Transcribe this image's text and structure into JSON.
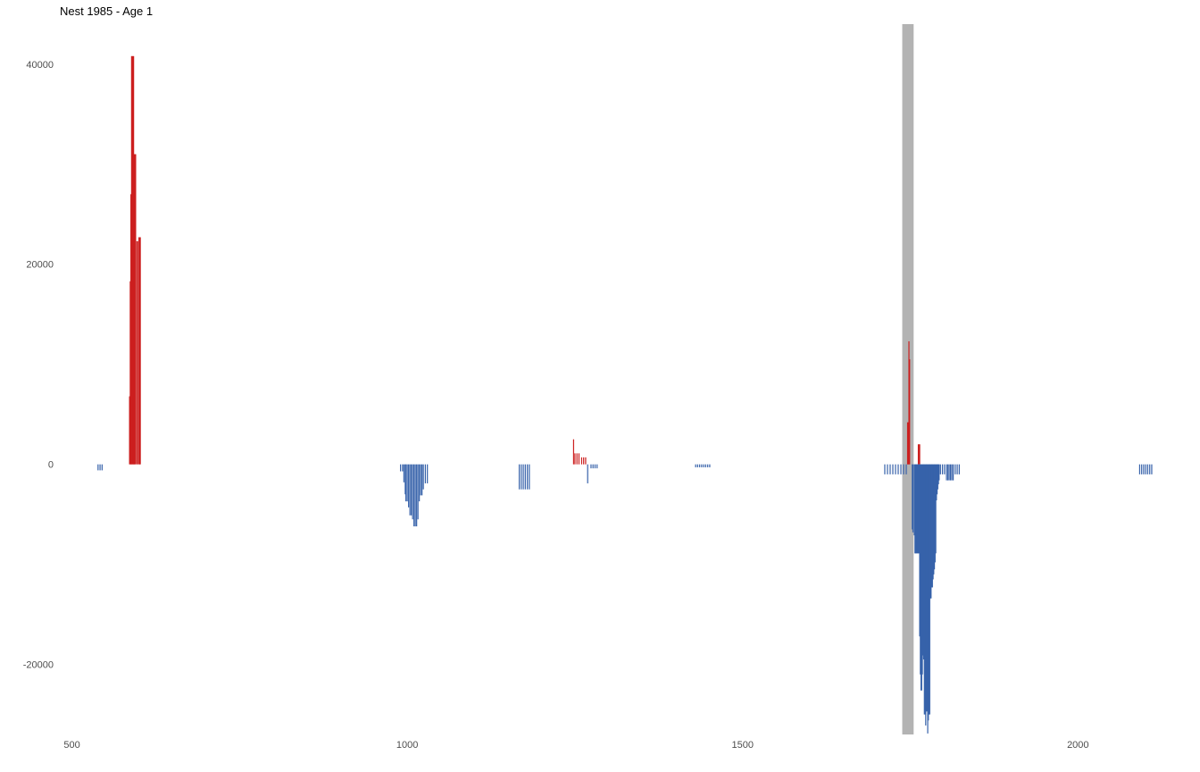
{
  "chart_data": {
    "type": "bar",
    "title": "Nest 1985 - Age 1",
    "xlabel": "",
    "ylabel": "",
    "xlim": [
      482,
      2150
    ],
    "ylim": [
      -27000,
      44000
    ],
    "x_ticks": [
      {
        "value": 500,
        "label": "500"
      },
      {
        "value": 1000,
        "label": "1000"
      },
      {
        "value": 1500,
        "label": "1500"
      },
      {
        "value": 2000,
        "label": "2000"
      }
    ],
    "y_ticks": [
      {
        "value": 40000,
        "label": "40000"
      },
      {
        "value": 20000,
        "label": "20000"
      },
      {
        "value": 0,
        "label": "0"
      },
      {
        "value": -20000,
        "label": "-20000"
      }
    ],
    "grid": false,
    "legend": "none",
    "colors": {
      "positive": "#cc1f1f",
      "negative": "#3762aa",
      "highlight_band": "#b3b3b3"
    },
    "highlight_band": {
      "x_start": 1738,
      "x_end": 1755
    },
    "series": [
      {
        "sign": "positive",
        "points": [
          {
            "x": 586,
            "y": 6800
          },
          {
            "x": 587,
            "y": 18300
          },
          {
            "x": 588,
            "y": 27000
          },
          {
            "x": 589,
            "y": 40800
          },
          {
            "x": 590,
            "y": 40800
          },
          {
            "x": 591,
            "y": 40800
          },
          {
            "x": 592,
            "y": 40800
          },
          {
            "x": 593,
            "y": 31000
          },
          {
            "x": 594,
            "y": 31000
          },
          {
            "x": 595,
            "y": 31000
          },
          {
            "x": 597,
            "y": 22300
          },
          {
            "x": 598,
            "y": 22300
          },
          {
            "x": 600,
            "y": 22700
          },
          {
            "x": 601,
            "y": 22700
          },
          {
            "x": 602,
            "y": 22700
          },
          {
            "x": 1248,
            "y": 2500
          },
          {
            "x": 1250,
            "y": 1100
          },
          {
            "x": 1253,
            "y": 1100
          },
          {
            "x": 1256,
            "y": 1100
          },
          {
            "x": 1260,
            "y": 700
          },
          {
            "x": 1263,
            "y": 700
          },
          {
            "x": 1266,
            "y": 700
          },
          {
            "x": 1746,
            "y": 4200
          },
          {
            "x": 1747,
            "y": 4200
          },
          {
            "x": 1748,
            "y": 12300
          },
          {
            "x": 1749,
            "y": 10500
          },
          {
            "x": 1762,
            "y": 2000
          },
          {
            "x": 1763,
            "y": 2000
          },
          {
            "x": 1764,
            "y": 2000
          }
        ]
      },
      {
        "sign": "negative",
        "points": [
          {
            "x": 539,
            "y": -600
          },
          {
            "x": 542,
            "y": -600
          },
          {
            "x": 545,
            "y": -600
          },
          {
            "x": 990,
            "y": -700
          },
          {
            "x": 993,
            "y": -700
          },
          {
            "x": 995,
            "y": -1800
          },
          {
            "x": 997,
            "y": -3000
          },
          {
            "x": 998,
            "y": -3700
          },
          {
            "x": 1000,
            "y": -3700
          },
          {
            "x": 1002,
            "y": -4300
          },
          {
            "x": 1004,
            "y": -5100
          },
          {
            "x": 1006,
            "y": -5100
          },
          {
            "x": 1008,
            "y": -5500
          },
          {
            "x": 1010,
            "y": -6200
          },
          {
            "x": 1012,
            "y": -6200
          },
          {
            "x": 1014,
            "y": -6200
          },
          {
            "x": 1016,
            "y": -5500
          },
          {
            "x": 1018,
            "y": -3700
          },
          {
            "x": 1020,
            "y": -3100
          },
          {
            "x": 1022,
            "y": -3100
          },
          {
            "x": 1024,
            "y": -2500
          },
          {
            "x": 1027,
            "y": -1900
          },
          {
            "x": 1030,
            "y": -1900
          },
          {
            "x": 1167,
            "y": -2500
          },
          {
            "x": 1170,
            "y": -2500
          },
          {
            "x": 1173,
            "y": -2500
          },
          {
            "x": 1176,
            "y": -2500
          },
          {
            "x": 1179,
            "y": -2500
          },
          {
            "x": 1182,
            "y": -2500
          },
          {
            "x": 1269,
            "y": -1900
          },
          {
            "x": 1274,
            "y": -400
          },
          {
            "x": 1277,
            "y": -400
          },
          {
            "x": 1280,
            "y": -400
          },
          {
            "x": 1283,
            "y": -400
          },
          {
            "x": 1430,
            "y": -300
          },
          {
            "x": 1433,
            "y": -300
          },
          {
            "x": 1436,
            "y": -300
          },
          {
            "x": 1439,
            "y": -300
          },
          {
            "x": 1442,
            "y": -300
          },
          {
            "x": 1445,
            "y": -300
          },
          {
            "x": 1448,
            "y": -300
          },
          {
            "x": 1451,
            "y": -300
          },
          {
            "x": 1712,
            "y": -1000
          },
          {
            "x": 1716,
            "y": -1000
          },
          {
            "x": 1720,
            "y": -1000
          },
          {
            "x": 1724,
            "y": -1000
          },
          {
            "x": 1728,
            "y": -1000
          },
          {
            "x": 1732,
            "y": -1000
          },
          {
            "x": 1736,
            "y": -1000
          },
          {
            "x": 1740,
            "y": -1000
          },
          {
            "x": 1744,
            "y": -1000
          },
          {
            "x": 1753,
            "y": -6500
          },
          {
            "x": 1754,
            "y": -6800
          },
          {
            "x": 1756,
            "y": -7100
          },
          {
            "x": 1757,
            "y": -8900
          },
          {
            "x": 1758,
            "y": -8900
          },
          {
            "x": 1759,
            "y": -8900
          },
          {
            "x": 1760,
            "y": -8900
          },
          {
            "x": 1761,
            "y": -8900
          },
          {
            "x": 1762,
            "y": -8900
          },
          {
            "x": 1763,
            "y": -8900
          },
          {
            "x": 1764,
            "y": -17200
          },
          {
            "x": 1765,
            "y": -21000
          },
          {
            "x": 1766,
            "y": -22600
          },
          {
            "x": 1767,
            "y": -22600
          },
          {
            "x": 1768,
            "y": -21000
          },
          {
            "x": 1769,
            "y": -19100
          },
          {
            "x": 1770,
            "y": -19500
          },
          {
            "x": 1771,
            "y": -25000
          },
          {
            "x": 1772,
            "y": -25000
          },
          {
            "x": 1773,
            "y": -26100
          },
          {
            "x": 1774,
            "y": -24700
          },
          {
            "x": 1775,
            "y": -24700
          },
          {
            "x": 1776,
            "y": -26900
          },
          {
            "x": 1777,
            "y": -25600
          },
          {
            "x": 1778,
            "y": -25000
          },
          {
            "x": 1779,
            "y": -25000
          },
          {
            "x": 1780,
            "y": -13400
          },
          {
            "x": 1781,
            "y": -13400
          },
          {
            "x": 1782,
            "y": -12300
          },
          {
            "x": 1783,
            "y": -12300
          },
          {
            "x": 1784,
            "y": -11500
          },
          {
            "x": 1785,
            "y": -11000
          },
          {
            "x": 1786,
            "y": -10500
          },
          {
            "x": 1787,
            "y": -9800
          },
          {
            "x": 1788,
            "y": -8900
          },
          {
            "x": 1789,
            "y": -3600
          },
          {
            "x": 1790,
            "y": -3000
          },
          {
            "x": 1791,
            "y": -2500
          },
          {
            "x": 1792,
            "y": -2000
          },
          {
            "x": 1793,
            "y": -1600
          },
          {
            "x": 1795,
            "y": -1000
          },
          {
            "x": 1798,
            "y": -1000
          },
          {
            "x": 1801,
            "y": -1000
          },
          {
            "x": 1804,
            "y": -1600
          },
          {
            "x": 1806,
            "y": -1600
          },
          {
            "x": 1808,
            "y": -1600
          },
          {
            "x": 1810,
            "y": -1600
          },
          {
            "x": 1812,
            "y": -1600
          },
          {
            "x": 1814,
            "y": -1600
          },
          {
            "x": 1817,
            "y": -1000
          },
          {
            "x": 1820,
            "y": -1000
          },
          {
            "x": 1823,
            "y": -1000
          },
          {
            "x": 2092,
            "y": -1000
          },
          {
            "x": 2095,
            "y": -1000
          },
          {
            "x": 2098,
            "y": -1000
          },
          {
            "x": 2101,
            "y": -1000
          },
          {
            "x": 2104,
            "y": -1000
          },
          {
            "x": 2107,
            "y": -1000
          },
          {
            "x": 2110,
            "y": -1000
          }
        ]
      }
    ]
  }
}
